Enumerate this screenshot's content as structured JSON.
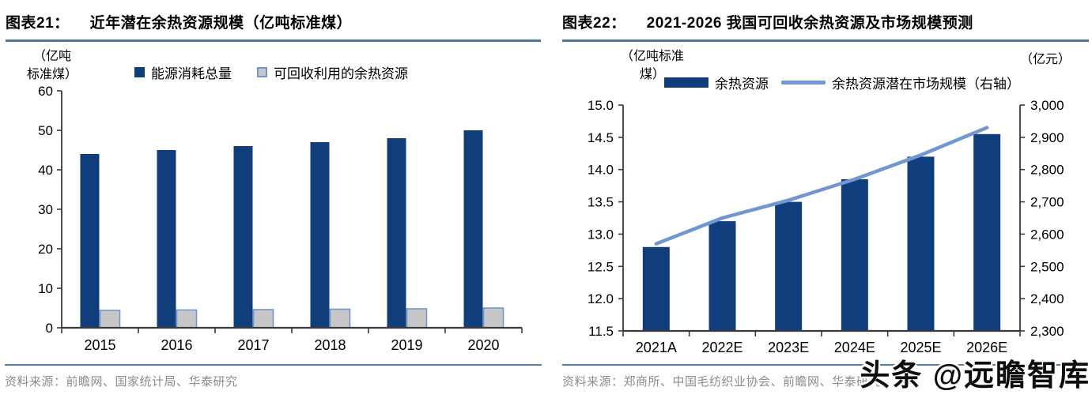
{
  "panels": [
    {
      "figure_label": "图表21：",
      "title": "近年潜在余热资源规模（亿吨标准煤）",
      "unit_label_line1": "（亿吨",
      "unit_label_line2": "标准煤）",
      "legend": [
        {
          "label": "能源消耗总量",
          "color": "#103d7b"
        },
        {
          "label": "可回收利用的余热资源",
          "color": "#c7c7c7",
          "border_color": "#7097d1"
        }
      ],
      "source": "资料来源：前瞻网、国家统计局、华泰研究"
    },
    {
      "figure_label": "图表22：",
      "title": "2021-2026 我国可回收余热资源及市场规模预测",
      "unit_label_line1": "（亿吨标准",
      "unit_label_line2": "煤）",
      "right_unit_label": "（亿元）",
      "legend": [
        {
          "label": "余热资源",
          "color": "#103d7b"
        },
        {
          "label": "余热资源潜在市场规模（右轴）",
          "color": "#7097d1"
        }
      ],
      "source": "资料来源：郑商所、中国毛纺织业协会、前瞻网、华泰研究"
    }
  ],
  "watermark": "头条 @远瞻智库",
  "colors": {
    "bar_navy": "#103d7b",
    "bar_gray_fill": "#c7c7c7",
    "bar_gray_border": "#7097d1",
    "line_blue": "#7097d1",
    "rule_blue": "#4c779f",
    "axis": "#3a3a3a",
    "source_text": "#8c8c8c"
  },
  "chart_data": [
    {
      "type": "bar",
      "title": "近年潜在余热资源规模（亿吨标准煤）",
      "xlabel": "",
      "ylabel": "（亿吨标准煤）",
      "categories": [
        "2015",
        "2016",
        "2017",
        "2018",
        "2019",
        "2020"
      ],
      "series": [
        {
          "name": "能源消耗总量",
          "values": [
            44,
            45,
            46,
            47,
            48,
            50
          ]
        },
        {
          "name": "可回收利用的余热资源",
          "values": [
            4.4,
            4.5,
            4.6,
            4.7,
            4.8,
            5.0
          ]
        }
      ],
      "ylim": [
        0,
        60
      ],
      "yticks": [
        0,
        10,
        20,
        30,
        40,
        50,
        60
      ],
      "grid": false,
      "legend_position": "top"
    },
    {
      "type": "bar+line",
      "title": "2021-2026 我国可回收余热资源及市场规模预测",
      "left_axis_label": "（亿吨标准煤）",
      "right_axis_label": "（亿元）",
      "categories": [
        "2021A",
        "2022E",
        "2023E",
        "2024E",
        "2025E",
        "2026E"
      ],
      "bar_series": {
        "name": "余热资源",
        "axis": "left",
        "values": [
          12.8,
          13.2,
          13.5,
          13.85,
          14.2,
          14.55
        ]
      },
      "line_series": {
        "name": "余热资源潜在市场规模（右轴）",
        "axis": "right",
        "values": [
          2570,
          2650,
          2705,
          2770,
          2845,
          2930
        ]
      },
      "left_ylim": [
        11.5,
        15.0
      ],
      "left_yticks": [
        11.5,
        12.0,
        12.5,
        13.0,
        13.5,
        14.0,
        14.5,
        15.0
      ],
      "right_ylim": [
        2300,
        3000
      ],
      "right_yticks": [
        2300,
        2400,
        2500,
        2600,
        2700,
        2800,
        2900,
        3000
      ],
      "grid": false,
      "legend_position": "top"
    }
  ]
}
